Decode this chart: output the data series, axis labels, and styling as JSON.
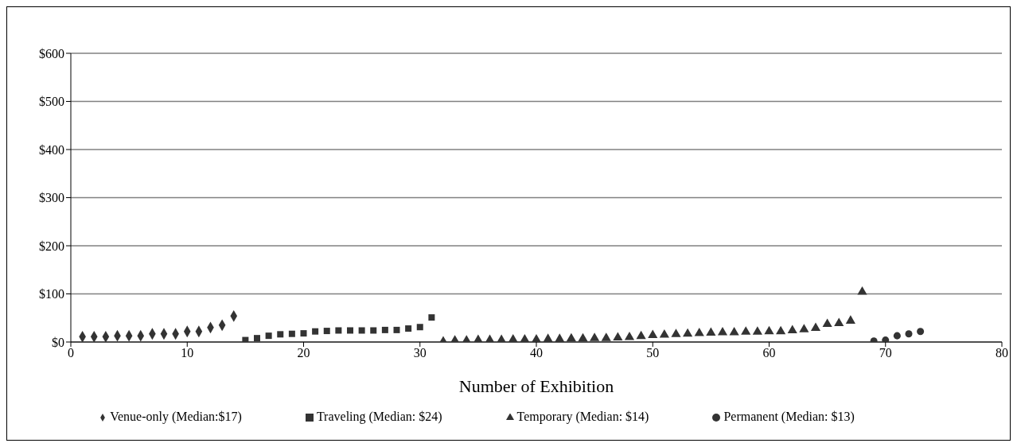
{
  "chart_data": {
    "type": "scatter",
    "xlabel": "Number of Exhibition",
    "xlim": [
      0,
      80
    ],
    "xticks": [
      0,
      10,
      20,
      30,
      40,
      50,
      60,
      70,
      80
    ],
    "ylim": [
      0,
      600
    ],
    "yticks": [
      {
        "value": 0,
        "label": "$0"
      },
      {
        "value": 100,
        "label": "$100"
      },
      {
        "value": 200,
        "label": "$200"
      },
      {
        "value": 300,
        "label": "$300"
      },
      {
        "value": 400,
        "label": "$400"
      },
      {
        "value": 500,
        "label": "$500"
      },
      {
        "value": 600,
        "label": "$600"
      }
    ],
    "grid": "y",
    "legend": "bottom",
    "series": [
      {
        "name": "Venue-only (Median:$17)",
        "color": "#333333",
        "marker": "diamond",
        "x": [
          1,
          2,
          3,
          4,
          5,
          6,
          7,
          8,
          9,
          10,
          11,
          12,
          13,
          14
        ],
        "values": [
          11,
          11,
          11,
          13,
          13,
          13,
          17,
          17,
          17,
          22,
          22,
          30,
          35,
          54
        ]
      },
      {
        "name": "Traveling (Median: $24)",
        "color": "#333333",
        "marker": "square",
        "x": [
          15,
          16,
          17,
          18,
          19,
          20,
          21,
          22,
          23,
          24,
          25,
          26,
          27,
          28,
          29,
          30,
          31
        ],
        "values": [
          4,
          8,
          13,
          16,
          17,
          18,
          22,
          23,
          24,
          24,
          24,
          24,
          25,
          25,
          28,
          31,
          51
        ]
      },
      {
        "name": "Temporary (Median: $14)",
        "color": "#333333",
        "marker": "triangle",
        "x": [
          32,
          33,
          34,
          35,
          36,
          37,
          38,
          39,
          40,
          41,
          42,
          43,
          44,
          45,
          46,
          47,
          48,
          49,
          50,
          51,
          52,
          53,
          54,
          55,
          56,
          57,
          58,
          59,
          60,
          61,
          62,
          63,
          64,
          65,
          66,
          67,
          68
        ],
        "values": [
          1,
          3,
          3,
          4,
          4,
          4,
          5,
          5,
          5,
          6,
          6,
          7,
          7,
          8,
          8,
          9,
          10,
          12,
          14,
          15,
          16,
          17,
          18,
          19,
          20,
          20,
          21,
          21,
          22,
          22,
          24,
          26,
          29,
          37,
          39,
          44,
          104
        ]
      },
      {
        "name": "Permanent (Median: $13)",
        "color": "#333333",
        "marker": "circle",
        "x": [
          69,
          70,
          71,
          72,
          73
        ],
        "values": [
          2,
          4,
          13,
          17,
          22
        ]
      }
    ]
  }
}
